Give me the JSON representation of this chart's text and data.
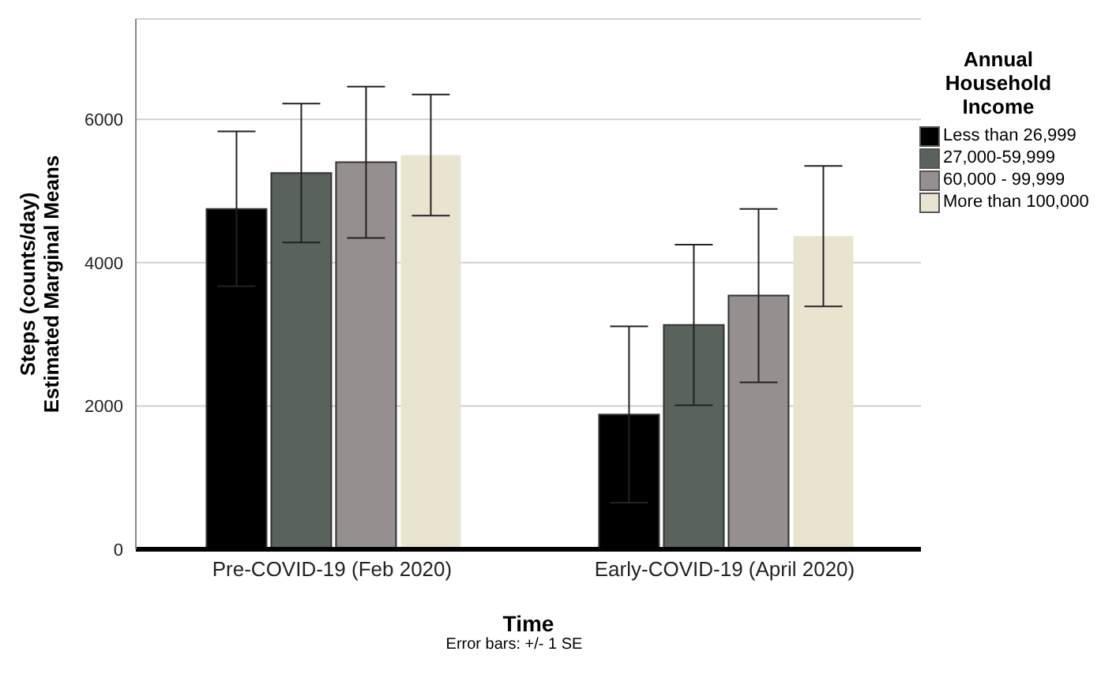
{
  "chart_data": {
    "type": "bar",
    "categories": [
      "Pre-COVID-19 (Feb 2020)",
      "Early-COVID-19 (April 2020)"
    ],
    "xlabel": "Time",
    "ylabel": "Steps (counts/day)\nEstimated Marginal Means",
    "legend_title": "Annual Household Income",
    "legend": "right",
    "grid": "y",
    "ylim": [
      0,
      7400
    ],
    "yticks": [
      0,
      2000,
      4000,
      6000
    ],
    "series": [
      {
        "name": "Less than 26,999",
        "color": "#000000",
        "values": [
          4750,
          1880
        ],
        "errors": [
          1080,
          1230
        ]
      },
      {
        "name": "27,000-59,999",
        "color": "#59625b",
        "values": [
          5250,
          3130
        ],
        "errors": [
          970,
          1120
        ]
      },
      {
        "name": "60,000 - 99,999",
        "color": "#968f8f",
        "values": [
          5400,
          3540
        ],
        "errors": [
          1055,
          1210
        ]
      },
      {
        "name": "More than 100,000",
        "color": "#e9e4d0",
        "values": [
          5500,
          4370
        ],
        "errors": [
          845,
          980
        ]
      }
    ],
    "annotations": [
      "Error bars: +/- 1 SE"
    ]
  }
}
